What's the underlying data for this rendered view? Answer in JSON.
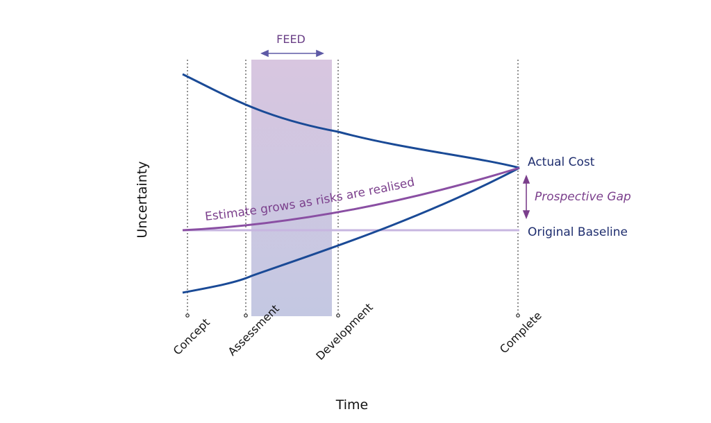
{
  "axes": {
    "x_title": "Time",
    "y_title": "Uncertainty"
  },
  "milestones": [
    "Concept",
    "Assessment",
    "Development",
    "Complete"
  ],
  "feed": {
    "label": "FEED"
  },
  "curves": {
    "estimate_label": "Estimate grows as risks are realised"
  },
  "labels": {
    "actual_cost": "Actual Cost",
    "prospective_gap": "Prospective Gap",
    "original_baseline": "Original Baseline"
  },
  "colors": {
    "envelope": "#1a4a96",
    "estimate": "#8a4fa3",
    "baseline": "#c7b6e0",
    "feed_band_top": "#d8c6e0",
    "feed_band_bottom": "#c4c8e2",
    "dark_text": "#1e2d6e",
    "purple_text": "#7b3f8c"
  }
}
